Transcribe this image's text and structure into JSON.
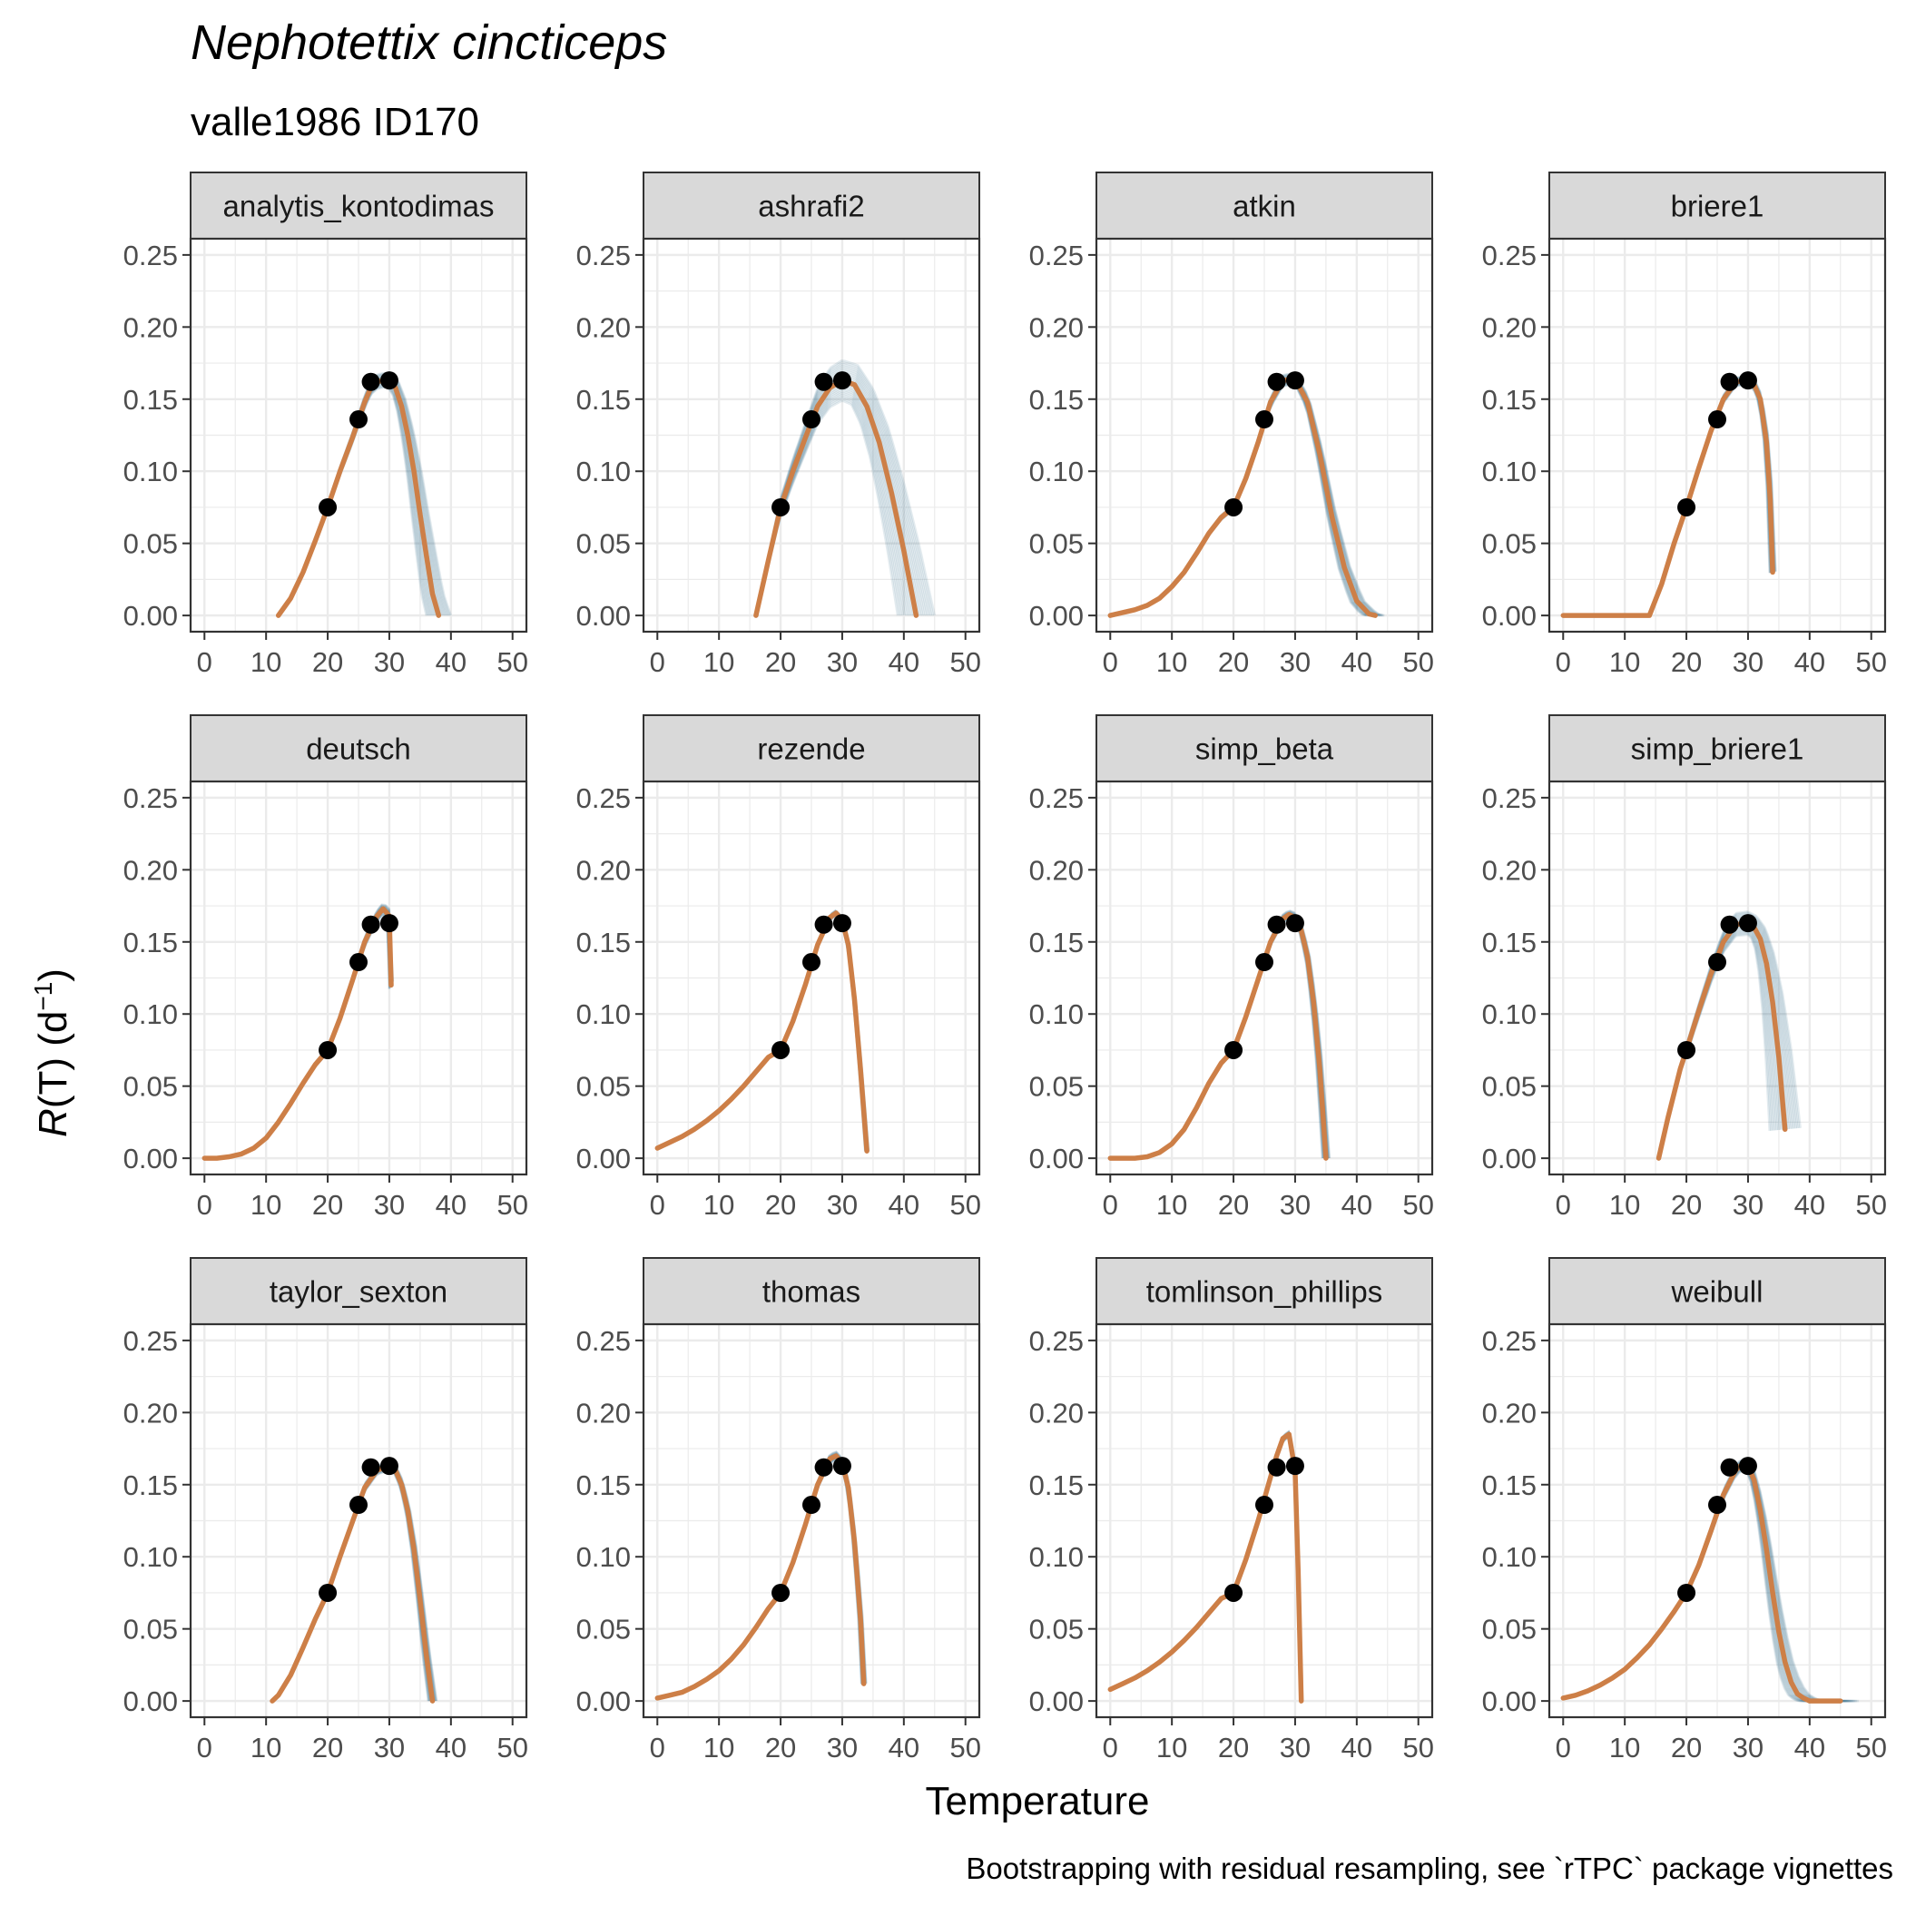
{
  "title": "Nephotettix cincticeps",
  "subtitle": "valle1986 ID170",
  "caption": "Bootstrapping with residual resampling, see `rTPC` package vignettes",
  "colors": {
    "fit": "#CD7F47",
    "bootstrap": "#1B5E7E",
    "points": "#000000",
    "strip_fill": "#D9D9D9",
    "grid": "#EBEBEB"
  },
  "chart_data": {
    "type": "line",
    "layout": "facet_wrap 3x4",
    "xlabel": "Temperature",
    "ylabel": {
      "symbol": "R",
      "rest": "(T) (d",
      "exponent": "−1",
      "close": ")"
    },
    "xlim": [
      0,
      50
    ],
    "ylim": [
      0,
      0.25
    ],
    "x_ticks": [
      0,
      10,
      20,
      30,
      40,
      50
    ],
    "y_ticks": [
      "0.00",
      "0.05",
      "0.10",
      "0.15",
      "0.20",
      "0.25"
    ],
    "grid": true,
    "observed_points": {
      "x": [
        20,
        25,
        27,
        30
      ],
      "y": [
        0.075,
        0.136,
        0.162,
        0.163
      ]
    },
    "facets": [
      {
        "name": "analytis_kontodimas",
        "fit": {
          "x": [
            12,
            14,
            16,
            18,
            20,
            22,
            24,
            26,
            27,
            28,
            29,
            30,
            31,
            32,
            33,
            34,
            35,
            36,
            37,
            38
          ],
          "y": [
            0,
            0.012,
            0.03,
            0.052,
            0.075,
            0.1,
            0.123,
            0.148,
            0.158,
            0.162,
            0.163,
            0.163,
            0.158,
            0.145,
            0.125,
            0.1,
            0.07,
            0.042,
            0.015,
            0
          ]
        },
        "boot_spread": {
          "peak": 0.005,
          "tail": 2.0
        }
      },
      {
        "name": "ashrafi2",
        "fit": {
          "x": [
            16,
            18,
            20,
            22,
            24,
            26,
            28,
            30,
            32,
            34,
            36,
            38,
            40,
            42
          ],
          "y": [
            0,
            0.038,
            0.075,
            0.1,
            0.123,
            0.145,
            0.158,
            0.163,
            0.16,
            0.145,
            0.12,
            0.085,
            0.045,
            0
          ]
        },
        "boot_spread": {
          "peak": 0.014,
          "tail": 3.0
        }
      },
      {
        "name": "atkin",
        "fit": {
          "x": [
            0,
            2,
            4,
            6,
            8,
            10,
            12,
            14,
            16,
            18,
            20,
            22,
            24,
            26,
            28,
            30,
            32,
            34,
            36,
            38,
            40,
            42,
            43
          ],
          "y": [
            0,
            0.002,
            0.004,
            0.007,
            0.012,
            0.02,
            0.03,
            0.043,
            0.057,
            0.068,
            0.075,
            0.095,
            0.12,
            0.148,
            0.163,
            0.164,
            0.148,
            0.112,
            0.068,
            0.033,
            0.01,
            0.001,
            0
          ]
        },
        "boot_spread": {
          "peak": 0.004,
          "tail": 1.5
        }
      },
      {
        "name": "briere1",
        "fit": {
          "x": [
            0,
            4,
            8,
            12,
            14,
            16,
            18,
            20,
            22,
            24,
            26,
            28,
            30,
            31,
            32,
            33,
            33.6,
            34
          ],
          "y": [
            0,
            0,
            0,
            0,
            0,
            0.022,
            0.05,
            0.075,
            0.102,
            0.128,
            0.15,
            0.162,
            0.163,
            0.16,
            0.15,
            0.12,
            0.08,
            0.03
          ]
        },
        "boot_spread": {
          "peak": 0.003,
          "tail": 0.5
        }
      },
      {
        "name": "deutsch",
        "fit": {
          "x": [
            0,
            2,
            4,
            6,
            8,
            10,
            12,
            14,
            16,
            18,
            20,
            22,
            24,
            26,
            28,
            29,
            30,
            30.3
          ],
          "y": [
            0,
            0,
            0.001,
            0.003,
            0.007,
            0.014,
            0.025,
            0.038,
            0.052,
            0.065,
            0.075,
            0.097,
            0.123,
            0.15,
            0.168,
            0.173,
            0.168,
            0.12
          ]
        },
        "boot_spread": {
          "peak": 0.004,
          "tail": 0.3
        }
      },
      {
        "name": "rezende",
        "fit": {
          "x": [
            0,
            2,
            4,
            6,
            8,
            10,
            12,
            14,
            16,
            18,
            20,
            22,
            24,
            26,
            28,
            29,
            30,
            31,
            32,
            33,
            34
          ],
          "y": [
            0.007,
            0.011,
            0.015,
            0.02,
            0.026,
            0.033,
            0.041,
            0.05,
            0.06,
            0.07,
            0.075,
            0.095,
            0.12,
            0.148,
            0.167,
            0.17,
            0.165,
            0.148,
            0.11,
            0.06,
            0.005
          ]
        },
        "boot_spread": {
          "peak": 0.002,
          "tail": 0.3
        }
      },
      {
        "name": "simp_beta",
        "fit": {
          "x": [
            0,
            4,
            6,
            8,
            10,
            12,
            14,
            16,
            18,
            20,
            22,
            24,
            26,
            28,
            29,
            30,
            31,
            32,
            33,
            34,
            35
          ],
          "y": [
            0,
            0,
            0.001,
            0.004,
            0.01,
            0.02,
            0.035,
            0.052,
            0.066,
            0.075,
            0.098,
            0.124,
            0.15,
            0.166,
            0.169,
            0.167,
            0.158,
            0.14,
            0.108,
            0.062,
            0
          ]
        },
        "boot_spread": {
          "peak": 0.003,
          "tail": 0.6
        }
      },
      {
        "name": "simp_briere1",
        "fit": {
          "x": [
            15.5,
            17,
            19,
            20,
            22,
            24,
            26,
            28,
            30,
            31,
            32,
            33,
            34,
            35,
            35.7,
            36
          ],
          "y": [
            0,
            0.028,
            0.062,
            0.075,
            0.102,
            0.128,
            0.15,
            0.162,
            0.163,
            0.16,
            0.152,
            0.135,
            0.108,
            0.07,
            0.035,
            0.02
          ]
        },
        "boot_spread": {
          "peak": 0.008,
          "tail": 2.5
        }
      },
      {
        "name": "taylor_sexton",
        "fit": {
          "x": [
            11,
            12,
            14,
            16,
            18,
            20,
            22,
            24,
            26,
            28,
            30,
            31,
            32,
            33,
            34,
            35,
            36,
            37
          ],
          "y": [
            0,
            0.004,
            0.018,
            0.037,
            0.057,
            0.075,
            0.1,
            0.124,
            0.148,
            0.16,
            0.163,
            0.16,
            0.15,
            0.132,
            0.105,
            0.07,
            0.032,
            0
          ]
        },
        "boot_spread": {
          "peak": 0.003,
          "tail": 0.7
        }
      },
      {
        "name": "thomas",
        "fit": {
          "x": [
            0,
            2,
            4,
            6,
            8,
            10,
            12,
            14,
            16,
            18,
            20,
            22,
            24,
            26,
            28,
            29,
            30,
            31,
            32,
            33,
            33.5
          ],
          "y": [
            0.002,
            0.004,
            0.006,
            0.01,
            0.015,
            0.021,
            0.029,
            0.039,
            0.051,
            0.064,
            0.075,
            0.096,
            0.122,
            0.15,
            0.168,
            0.17,
            0.165,
            0.148,
            0.11,
            0.055,
            0.012
          ]
        },
        "boot_spread": {
          "peak": 0.003,
          "tail": 0.4
        }
      },
      {
        "name": "tomlinson_phillips",
        "fit": {
          "x": [
            0,
            2,
            4,
            6,
            8,
            10,
            12,
            14,
            16,
            18,
            20,
            22,
            24,
            26,
            27,
            28,
            29,
            30,
            30.5,
            31
          ],
          "y": [
            0.008,
            0.012,
            0.016,
            0.021,
            0.027,
            0.034,
            0.042,
            0.051,
            0.061,
            0.071,
            0.075,
            0.098,
            0.125,
            0.155,
            0.17,
            0.182,
            0.185,
            0.16,
            0.09,
            0
          ]
        },
        "boot_spread": {
          "peak": 0.002,
          "tail": 0.2
        }
      },
      {
        "name": "weibull",
        "fit": {
          "x": [
            0,
            2,
            4,
            6,
            8,
            10,
            12,
            14,
            16,
            18,
            20,
            22,
            24,
            26,
            28,
            29,
            30,
            31,
            32,
            33,
            34,
            35,
            36,
            37,
            38,
            39,
            40,
            42,
            45
          ],
          "y": [
            0.002,
            0.004,
            0.007,
            0.011,
            0.016,
            0.022,
            0.03,
            0.039,
            0.05,
            0.062,
            0.075,
            0.094,
            0.118,
            0.143,
            0.16,
            0.164,
            0.163,
            0.153,
            0.132,
            0.105,
            0.075,
            0.048,
            0.027,
            0.013,
            0.005,
            0.002,
            0,
            0,
            0
          ]
        },
        "boot_spread": {
          "peak": 0.004,
          "tail": 3.0
        }
      }
    ]
  }
}
